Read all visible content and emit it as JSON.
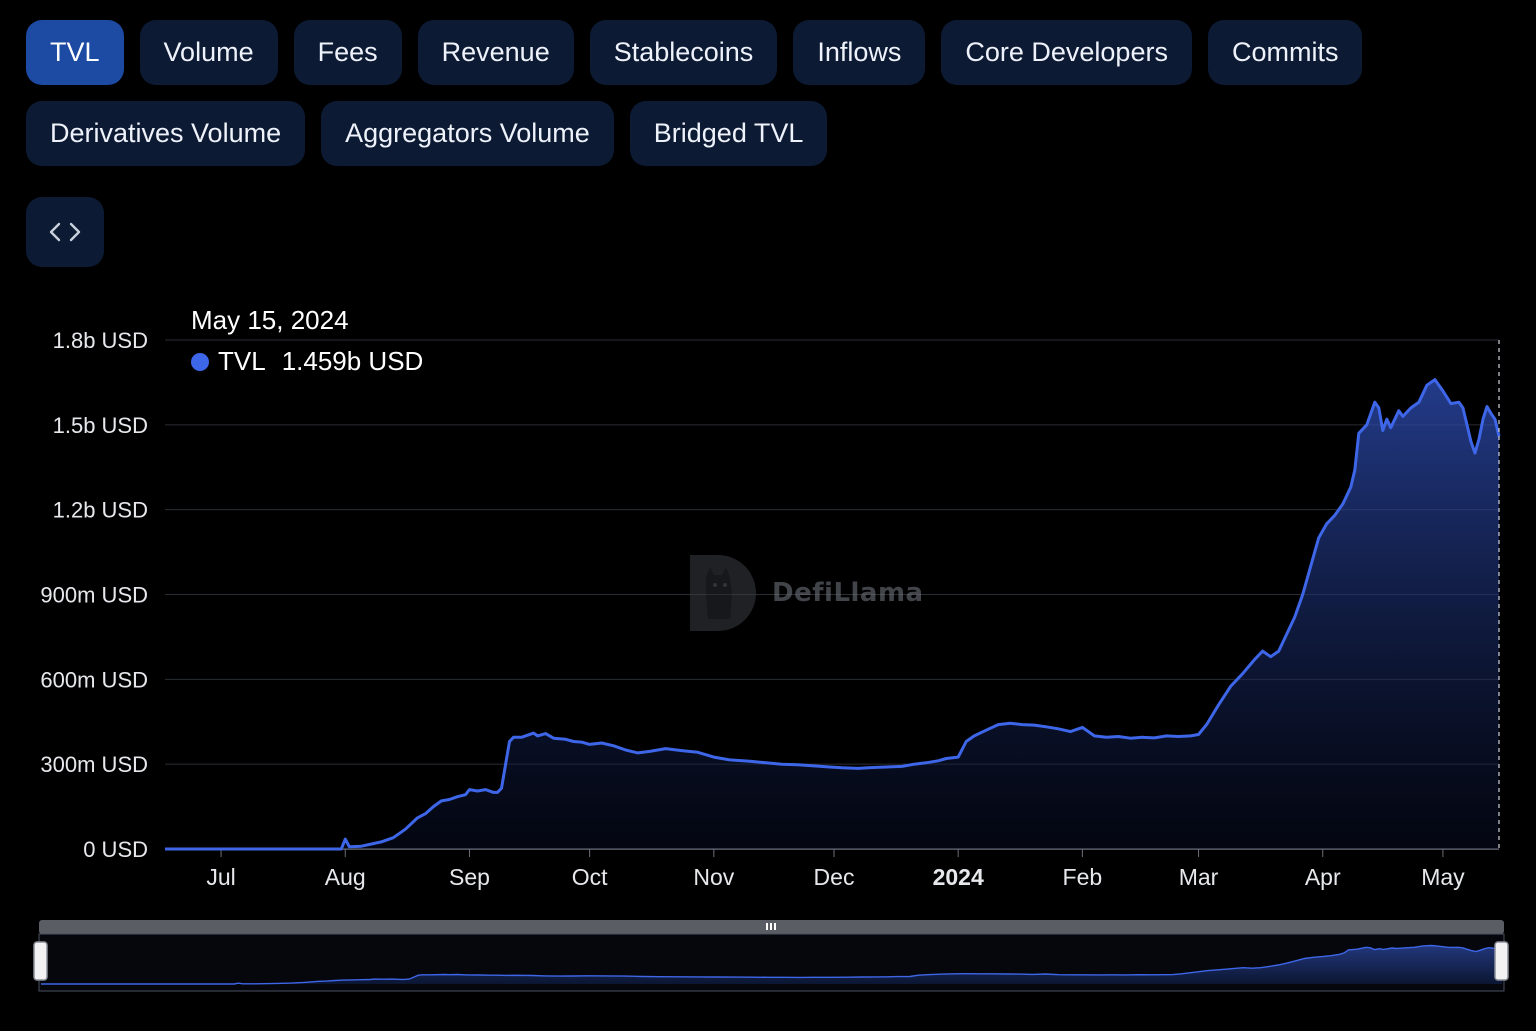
{
  "tabs_row1": [
    {
      "label": "TVL",
      "active": true
    },
    {
      "label": "Volume"
    },
    {
      "label": "Fees"
    },
    {
      "label": "Revenue"
    },
    {
      "label": "Stablecoins"
    },
    {
      "label": "Inflows"
    },
    {
      "label": "Core Developers"
    },
    {
      "label": "Commits"
    }
  ],
  "tabs_row2": [
    {
      "label": "Derivatives Volume"
    },
    {
      "label": "Aggregators Volume"
    },
    {
      "label": "Bridged TVL"
    }
  ],
  "embed_icon": "code-brackets-icon",
  "tooltip": {
    "date": "May 15, 2024",
    "series": "TVL",
    "value": "1.459b USD",
    "color": "#3e66e8"
  },
  "watermark": "DefiLlama",
  "colors": {
    "line": "#3e66e8",
    "tab_bg": "#0d1a33",
    "tab_active": "#1d4aa3",
    "grid": "#2a2d33"
  },
  "chart_data": {
    "type": "area",
    "title": "",
    "xlabel": "",
    "ylabel": "",
    "y_tick_labels": [
      "0 USD",
      "300m USD",
      "600m USD",
      "900m USD",
      "1.2b USD",
      "1.5b USD",
      "1.8b USD"
    ],
    "y_ticks": [
      0,
      300,
      600,
      900,
      1200,
      1500,
      1800
    ],
    "y_unit": "million USD",
    "ylim": [
      0,
      1800
    ],
    "x_tick_labels": [
      {
        "label": "Jul",
        "date": "2023-07-01",
        "bold": false
      },
      {
        "label": "Aug",
        "date": "2023-08-01",
        "bold": false
      },
      {
        "label": "Sep",
        "date": "2023-09-01",
        "bold": false
      },
      {
        "label": "Oct",
        "date": "2023-10-01",
        "bold": false
      },
      {
        "label": "Nov",
        "date": "2023-11-01",
        "bold": false
      },
      {
        "label": "Dec",
        "date": "2023-12-01",
        "bold": false
      },
      {
        "label": "2024",
        "date": "2024-01-01",
        "bold": true
      },
      {
        "label": "Feb",
        "date": "2024-02-01",
        "bold": false
      },
      {
        "label": "Mar",
        "date": "2024-03-01",
        "bold": false
      },
      {
        "label": "Apr",
        "date": "2024-04-01",
        "bold": false
      },
      {
        "label": "May",
        "date": "2024-05-01",
        "bold": false
      }
    ],
    "xlim": [
      "2023-06-17",
      "2024-05-15"
    ],
    "grid": true,
    "series": [
      {
        "name": "TVL",
        "color": "#3e66e8",
        "points": [
          [
            "2023-06-17",
            0
          ],
          [
            "2023-07-15",
            0
          ],
          [
            "2023-07-31",
            0
          ],
          [
            "2023-08-01",
            35
          ],
          [
            "2023-08-02",
            8
          ],
          [
            "2023-08-05",
            10
          ],
          [
            "2023-08-10",
            25
          ],
          [
            "2023-08-13",
            40
          ],
          [
            "2023-08-16",
            70
          ],
          [
            "2023-08-19",
            110
          ],
          [
            "2023-08-21",
            125
          ],
          [
            "2023-08-23",
            150
          ],
          [
            "2023-08-25",
            170
          ],
          [
            "2023-08-27",
            175
          ],
          [
            "2023-08-29",
            185
          ],
          [
            "2023-08-31",
            192
          ],
          [
            "2023-09-01",
            210
          ],
          [
            "2023-09-03",
            205
          ],
          [
            "2023-09-05",
            210
          ],
          [
            "2023-09-07",
            200
          ],
          [
            "2023-09-08",
            200
          ],
          [
            "2023-09-09",
            215
          ],
          [
            "2023-09-11",
            380
          ],
          [
            "2023-09-12",
            395
          ],
          [
            "2023-09-14",
            395
          ],
          [
            "2023-09-17",
            410
          ],
          [
            "2023-09-18",
            400
          ],
          [
            "2023-09-20",
            408
          ],
          [
            "2023-09-22",
            392
          ],
          [
            "2023-09-25",
            388
          ],
          [
            "2023-09-27",
            380
          ],
          [
            "2023-09-29",
            378
          ],
          [
            "2023-10-01",
            370
          ],
          [
            "2023-10-04",
            375
          ],
          [
            "2023-10-07",
            365
          ],
          [
            "2023-10-10",
            350
          ],
          [
            "2023-10-13",
            340
          ],
          [
            "2023-10-16",
            345
          ],
          [
            "2023-10-20",
            355
          ],
          [
            "2023-10-24",
            348
          ],
          [
            "2023-10-28",
            342
          ],
          [
            "2023-11-01",
            325
          ],
          [
            "2023-11-05",
            315
          ],
          [
            "2023-11-10",
            310
          ],
          [
            "2023-11-14",
            305
          ],
          [
            "2023-11-18",
            300
          ],
          [
            "2023-11-22",
            298
          ],
          [
            "2023-11-26",
            294
          ],
          [
            "2023-11-30",
            290
          ],
          [
            "2023-12-03",
            287
          ],
          [
            "2023-12-07",
            285
          ],
          [
            "2023-12-10",
            288
          ],
          [
            "2023-12-14",
            290
          ],
          [
            "2023-12-18",
            292
          ],
          [
            "2023-12-21",
            300
          ],
          [
            "2023-12-24",
            305
          ],
          [
            "2023-12-27",
            312
          ],
          [
            "2023-12-29",
            320
          ],
          [
            "2024-01-01",
            325
          ],
          [
            "2024-01-03",
            380
          ],
          [
            "2024-01-05",
            400
          ],
          [
            "2024-01-08",
            420
          ],
          [
            "2024-01-11",
            440
          ],
          [
            "2024-01-14",
            445
          ],
          [
            "2024-01-17",
            440
          ],
          [
            "2024-01-20",
            438
          ],
          [
            "2024-01-23",
            432
          ],
          [
            "2024-01-26",
            425
          ],
          [
            "2024-01-29",
            415
          ],
          [
            "2024-02-01",
            430
          ],
          [
            "2024-02-04",
            400
          ],
          [
            "2024-02-07",
            395
          ],
          [
            "2024-02-10",
            398
          ],
          [
            "2024-02-13",
            392
          ],
          [
            "2024-02-16",
            395
          ],
          [
            "2024-02-19",
            393
          ],
          [
            "2024-02-22",
            400
          ],
          [
            "2024-02-25",
            398
          ],
          [
            "2024-02-28",
            400
          ],
          [
            "2024-03-01",
            405
          ],
          [
            "2024-03-03",
            440
          ],
          [
            "2024-03-06",
            510
          ],
          [
            "2024-03-09",
            575
          ],
          [
            "2024-03-12",
            620
          ],
          [
            "2024-03-15",
            670
          ],
          [
            "2024-03-17",
            700
          ],
          [
            "2024-03-19",
            680
          ],
          [
            "2024-03-21",
            700
          ],
          [
            "2024-03-23",
            760
          ],
          [
            "2024-03-25",
            820
          ],
          [
            "2024-03-27",
            900
          ],
          [
            "2024-03-29",
            1000
          ],
          [
            "2024-03-31",
            1100
          ],
          [
            "2024-04-02",
            1150
          ],
          [
            "2024-04-04",
            1180
          ],
          [
            "2024-04-06",
            1220
          ],
          [
            "2024-04-08",
            1280
          ],
          [
            "2024-04-09",
            1340
          ],
          [
            "2024-04-10",
            1470
          ],
          [
            "2024-04-12",
            1500
          ],
          [
            "2024-04-14",
            1580
          ],
          [
            "2024-04-15",
            1560
          ],
          [
            "2024-04-16",
            1480
          ],
          [
            "2024-04-17",
            1520
          ],
          [
            "2024-04-18",
            1490
          ],
          [
            "2024-04-19",
            1520
          ],
          [
            "2024-04-20",
            1550
          ],
          [
            "2024-04-21",
            1530
          ],
          [
            "2024-04-23",
            1560
          ],
          [
            "2024-04-25",
            1580
          ],
          [
            "2024-04-27",
            1640
          ],
          [
            "2024-04-29",
            1660
          ],
          [
            "2024-05-01",
            1620
          ],
          [
            "2024-05-03",
            1575
          ],
          [
            "2024-05-05",
            1580
          ],
          [
            "2024-05-06",
            1560
          ],
          [
            "2024-05-07",
            1500
          ],
          [
            "2024-05-08",
            1440
          ],
          [
            "2024-05-09",
            1400
          ],
          [
            "2024-05-10",
            1450
          ],
          [
            "2024-05-11",
            1520
          ],
          [
            "2024-05-12",
            1565
          ],
          [
            "2024-05-13",
            1540
          ],
          [
            "2024-05-14",
            1520
          ],
          [
            "2024-05-15",
            1459
          ]
        ]
      }
    ]
  }
}
